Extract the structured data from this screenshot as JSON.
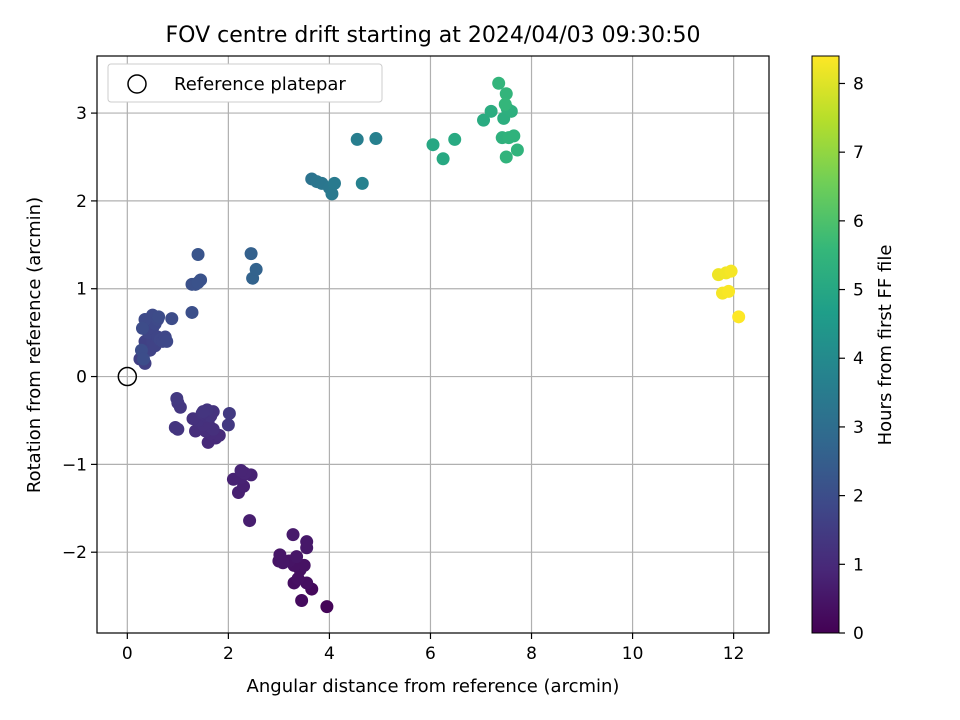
{
  "chart_data": {
    "type": "scatter",
    "title": "FOV centre drift starting at 2024/04/03 09:30:50",
    "xlabel": "Angular distance from reference (arcmin)",
    "ylabel": "Rotation from reference (arcmin)",
    "xlim": [
      -0.6,
      12.7
    ],
    "ylim": [
      -2.92,
      3.65
    ],
    "xticks": [
      0,
      2,
      4,
      6,
      8,
      10,
      12
    ],
    "xtick_labels": [
      "0",
      "2",
      "4",
      "6",
      "8",
      "10",
      "12"
    ],
    "yticks": [
      -2,
      -1,
      0,
      1,
      2,
      3
    ],
    "ytick_labels": [
      "−2",
      "−1",
      "0",
      "1",
      "2",
      "3"
    ],
    "grid": true,
    "legend": {
      "position": "top-left",
      "entries": [
        "Reference platepar"
      ]
    },
    "reference_point": {
      "x": 0,
      "y": 0,
      "marker": "hollow-circle",
      "color": "#000000"
    },
    "colorbar": {
      "label": "Hours from first FF file",
      "colormap": "viridis",
      "range": [
        0,
        8.4
      ],
      "ticks": [
        0,
        1,
        2,
        3,
        4,
        5,
        6,
        7,
        8
      ],
      "tick_labels": [
        "0",
        "1",
        "2",
        "3",
        "4",
        "5",
        "6",
        "7",
        "8"
      ],
      "stops": [
        "#440154",
        "#482878",
        "#3e4989",
        "#31688e",
        "#26828e",
        "#1f9e89",
        "#35b779",
        "#6ece58",
        "#b5de2b",
        "#fde725"
      ]
    },
    "series": [
      {
        "points": [
          [
            3.95,
            -2.62,
            0.1
          ],
          [
            3.65,
            -2.42,
            0.2
          ],
          [
            3.45,
            -2.55,
            0.25
          ],
          [
            3.55,
            -2.35,
            0.3
          ],
          [
            3.3,
            -2.35,
            0.3
          ],
          [
            3.38,
            -2.3,
            0.35
          ],
          [
            3.42,
            -2.2,
            0.35
          ],
          [
            3.5,
            -2.15,
            0.4
          ],
          [
            3.3,
            -2.15,
            0.4
          ],
          [
            3.2,
            -2.1,
            0.45
          ],
          [
            3.0,
            -2.1,
            0.45
          ],
          [
            3.08,
            -2.12,
            0.5
          ],
          [
            3.35,
            -2.05,
            0.5
          ],
          [
            3.02,
            -2.03,
            0.5
          ],
          [
            3.55,
            -1.95,
            0.55
          ],
          [
            3.55,
            -1.88,
            0.55
          ],
          [
            3.28,
            -1.8,
            0.6
          ],
          [
            2.42,
            -1.64,
            0.7
          ],
          [
            2.2,
            -1.32,
            0.75
          ],
          [
            2.3,
            -1.25,
            0.75
          ],
          [
            2.1,
            -1.17,
            0.8
          ],
          [
            2.25,
            -1.15,
            0.8
          ],
          [
            2.45,
            -1.12,
            0.8
          ],
          [
            2.32,
            -1.1,
            0.85
          ],
          [
            2.25,
            -1.07,
            0.85
          ],
          [
            1.6,
            -0.75,
            1.0
          ],
          [
            1.75,
            -0.7,
            1.0
          ],
          [
            1.82,
            -0.67,
            1.05
          ],
          [
            1.65,
            -0.65,
            1.05
          ],
          [
            1.55,
            -0.62,
            1.1
          ],
          [
            1.35,
            -0.62,
            1.1
          ],
          [
            1.45,
            -0.58,
            1.1
          ],
          [
            1.7,
            -0.6,
            1.15
          ],
          [
            1.5,
            -0.55,
            1.15
          ],
          [
            1.6,
            -0.52,
            1.15
          ],
          [
            1.4,
            -0.5,
            1.2
          ],
          [
            1.3,
            -0.48,
            1.2
          ],
          [
            1.55,
            -0.45,
            1.2
          ],
          [
            1.65,
            -0.45,
            1.25
          ],
          [
            1.48,
            -0.42,
            1.25
          ],
          [
            1.7,
            -0.4,
            1.25
          ],
          [
            1.58,
            -0.38,
            1.3
          ],
          [
            1.5,
            -0.4,
            1.3
          ],
          [
            1.0,
            -0.6,
            1.3
          ],
          [
            0.95,
            -0.58,
            1.3
          ],
          [
            1.05,
            -0.35,
            1.35
          ],
          [
            1.0,
            -0.3,
            1.35
          ],
          [
            0.98,
            -0.25,
            1.4
          ],
          [
            2.0,
            -0.55,
            1.4
          ],
          [
            2.02,
            -0.42,
            1.45
          ],
          [
            0.3,
            0.25,
            1.6
          ],
          [
            0.35,
            0.15,
            1.6
          ],
          [
            0.25,
            0.2,
            1.6
          ],
          [
            0.3,
            0.3,
            1.65
          ],
          [
            0.4,
            0.35,
            1.65
          ],
          [
            0.35,
            0.4,
            1.65
          ],
          [
            0.45,
            0.3,
            1.7
          ],
          [
            0.5,
            0.4,
            1.7
          ],
          [
            0.55,
            0.35,
            1.7
          ],
          [
            0.42,
            0.5,
            1.75
          ],
          [
            0.5,
            0.55,
            1.75
          ],
          [
            0.6,
            0.45,
            1.75
          ],
          [
            0.65,
            0.42,
            1.8
          ],
          [
            0.7,
            0.4,
            1.8
          ],
          [
            0.75,
            0.45,
            1.8
          ],
          [
            0.78,
            0.4,
            1.85
          ],
          [
            0.55,
            0.6,
            1.85
          ],
          [
            0.45,
            0.65,
            1.85
          ],
          [
            0.5,
            0.7,
            1.9
          ],
          [
            0.35,
            0.65,
            1.9
          ],
          [
            0.6,
            0.65,
            1.9
          ],
          [
            0.62,
            0.68,
            1.95
          ],
          [
            0.88,
            0.66,
            1.95
          ],
          [
            0.3,
            0.55,
            1.95
          ],
          [
            0.28,
            0.3,
            2.0
          ],
          [
            0.32,
            0.2,
            2.0
          ],
          [
            1.28,
            0.73,
            2.05
          ],
          [
            1.28,
            1.05,
            2.1
          ],
          [
            1.35,
            1.05,
            2.1
          ],
          [
            1.45,
            1.1,
            2.15
          ],
          [
            1.4,
            1.07,
            2.15
          ],
          [
            1.4,
            1.39,
            2.2
          ],
          [
            2.45,
            1.4,
            2.6
          ],
          [
            2.48,
            1.12,
            2.65
          ],
          [
            2.55,
            1.22,
            2.65
          ],
          [
            3.65,
            2.25,
            3.2
          ],
          [
            3.75,
            2.22,
            3.25
          ],
          [
            3.85,
            2.2,
            3.3
          ],
          [
            4.0,
            2.15,
            3.35
          ],
          [
            4.05,
            2.08,
            3.4
          ],
          [
            4.1,
            2.2,
            3.45
          ],
          [
            4.55,
            2.7,
            3.6
          ],
          [
            4.92,
            2.71,
            3.65
          ],
          [
            4.65,
            2.2,
            3.7
          ],
          [
            6.05,
            2.64,
            5.0
          ],
          [
            6.25,
            2.48,
            5.05
          ],
          [
            6.48,
            2.7,
            5.1
          ],
          [
            7.05,
            2.92,
            5.15
          ],
          [
            7.2,
            3.02,
            5.2
          ],
          [
            7.45,
            2.94,
            5.25
          ],
          [
            7.52,
            3.05,
            5.3
          ],
          [
            7.6,
            3.02,
            5.3
          ],
          [
            7.42,
            2.72,
            5.35
          ],
          [
            7.55,
            2.72,
            5.4
          ],
          [
            7.65,
            2.74,
            5.4
          ],
          [
            7.72,
            2.58,
            5.45
          ],
          [
            7.5,
            2.5,
            5.45
          ],
          [
            7.35,
            3.34,
            5.5
          ],
          [
            7.5,
            3.22,
            5.5
          ],
          [
            7.48,
            3.1,
            5.55
          ],
          [
            11.7,
            1.16,
            8.2
          ],
          [
            11.85,
            1.18,
            8.25
          ],
          [
            11.95,
            1.2,
            8.3
          ],
          [
            11.78,
            0.95,
            8.3
          ],
          [
            11.9,
            0.97,
            8.35
          ],
          [
            12.1,
            0.68,
            8.4
          ]
        ]
      }
    ]
  }
}
